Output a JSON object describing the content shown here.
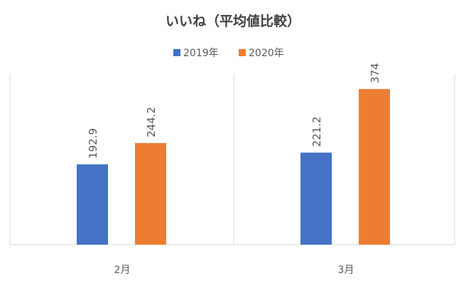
{
  "chart_data": {
    "type": "bar",
    "title": "いいね（平均値比較）",
    "categories": [
      "2月",
      "3月"
    ],
    "series": [
      {
        "name": "2019年",
        "values": [
          192.9,
          221.2
        ],
        "labels": [
          "192.9",
          "221.2"
        ],
        "color": "#4472C4"
      },
      {
        "name": "2020年",
        "values": [
          244.2,
          374
        ],
        "labels": [
          "244.2",
          "374"
        ],
        "color": "#ED7D31"
      }
    ],
    "ylim": [
      0,
      400
    ],
    "grid": false,
    "legend_position": "top",
    "data_label_orientation": "vertical",
    "colors": {
      "axis": "#D9D9D9",
      "text": "#595959",
      "title": "#404040"
    }
  }
}
